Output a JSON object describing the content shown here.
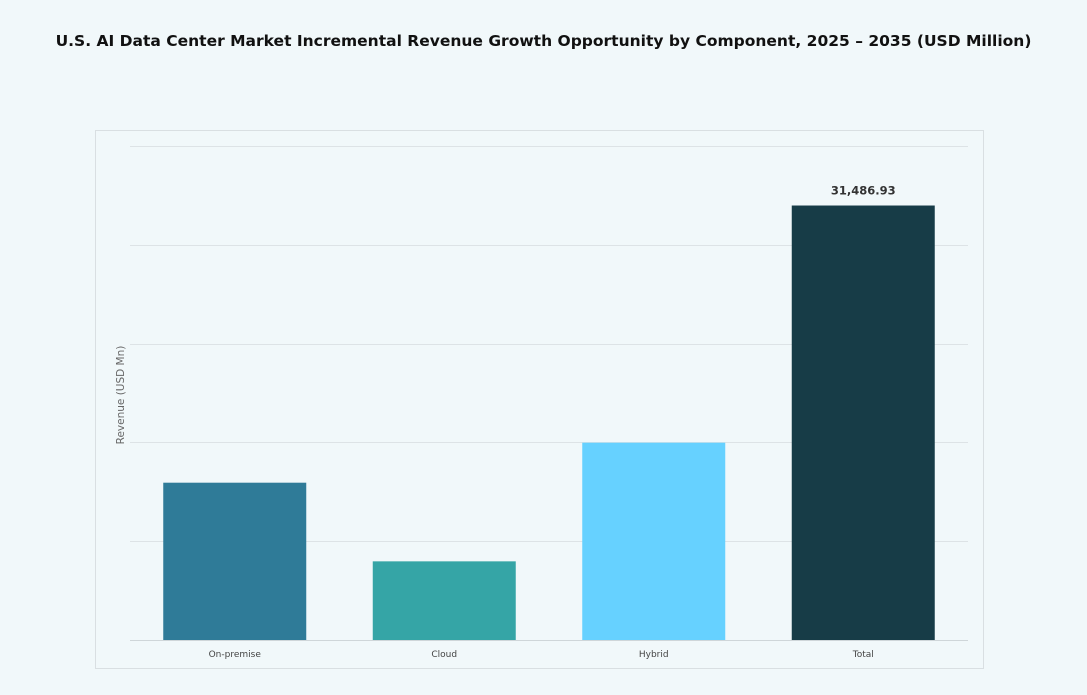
{
  "chart_data": {
    "type": "bar",
    "title": "U.S. AI Data Center Market Incremental Revenue Growth Opportunity by Component, 2025 – 2035 (USD Million)",
    "xlabel": "",
    "ylabel": "Revenue (USD Mn)",
    "categories": [
      "On-premise",
      "Cloud",
      "Hybrid",
      "Total"
    ],
    "values": [
      11400,
      5700,
      14300,
      31486.93
    ],
    "data_labels": [
      "",
      "",
      "",
      "31,486.93"
    ],
    "ylim": [
      0,
      35800
    ],
    "gridline_step": 7160,
    "grid": true,
    "legend": "none",
    "colors": [
      "#2f7b98",
      "#35a5a6",
      "#66d1ff",
      "#173c47"
    ]
  }
}
